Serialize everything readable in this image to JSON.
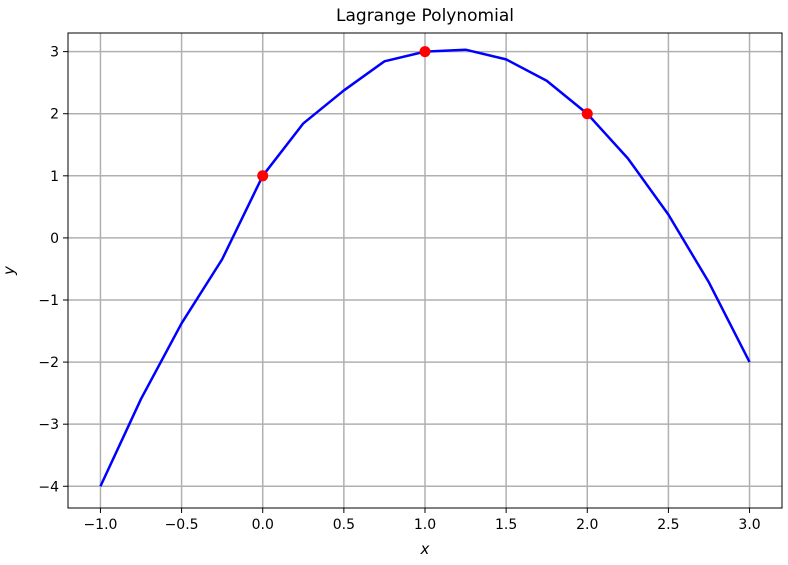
{
  "chart_data": {
    "type": "line",
    "title": "Lagrange Polynomial",
    "xlabel": "x",
    "ylabel": "y",
    "xlim": [
      -1.2,
      3.2
    ],
    "ylim": [
      -4.35,
      3.3
    ],
    "x_ticks": [
      -1.0,
      -0.5,
      0.0,
      0.5,
      1.0,
      1.5,
      2.0,
      2.5,
      3.0
    ],
    "x_tick_labels": [
      "−1.0",
      "−0.5",
      "0.0",
      "0.5",
      "1.0",
      "1.5",
      "2.0",
      "2.5",
      "3.0"
    ],
    "y_ticks": [
      -4,
      -3,
      -2,
      -1,
      0,
      1,
      2,
      3
    ],
    "y_tick_labels": [
      "−4",
      "−3",
      "−2",
      "−1",
      "0",
      "1",
      "2",
      "3"
    ],
    "grid": true,
    "series": [
      {
        "type": "line",
        "color": "#0000ff",
        "x": [
          -1.0,
          -0.75,
          -0.5,
          -0.25,
          0.0,
          0.25,
          0.5,
          0.75,
          1.0,
          1.25,
          1.5,
          1.75,
          2.0,
          2.25,
          2.5,
          2.75,
          3.0
        ],
        "values": [
          -4.0,
          -2.5938,
          -1.375,
          -0.3438,
          1.0,
          1.8438,
          2.375,
          2.8438,
          3.0,
          3.0312,
          2.875,
          2.5312,
          2.0,
          1.2812,
          0.375,
          -0.7188,
          -2.0
        ]
      },
      {
        "type": "scatter",
        "color": "#ff0000",
        "x": [
          0,
          1,
          2
        ],
        "values": [
          1,
          3,
          2
        ]
      }
    ]
  }
}
